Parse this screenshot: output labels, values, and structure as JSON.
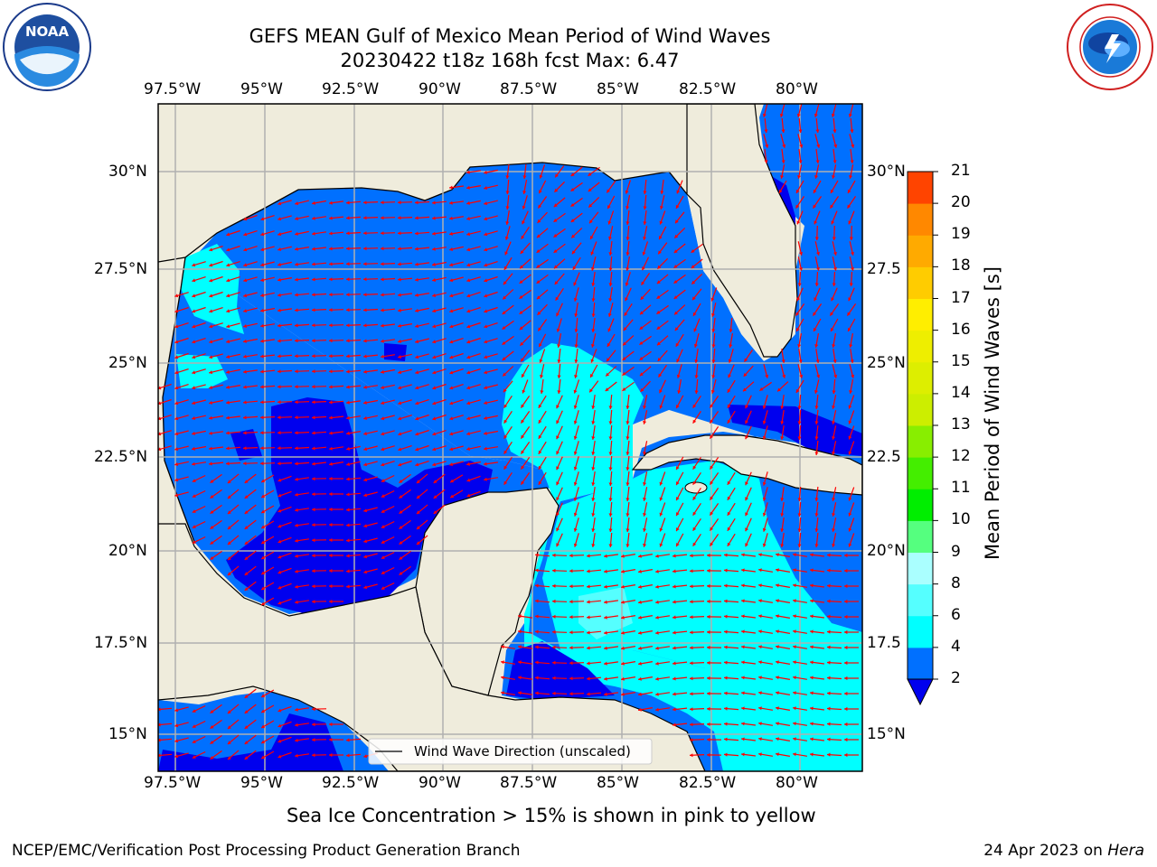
{
  "title": {
    "line1": "GEFS MEAN Gulf of Mexico Mean Period of Wind Waves",
    "line2": "20230422 t18z 168h fcst   Max: 6.47"
  },
  "map": {
    "lon_labels": [
      "97.5°W",
      "95°W",
      "92.5°W",
      "90°W",
      "87.5°W",
      "85°W",
      "82.5°W",
      "80°W"
    ],
    "lat_labels_left": [
      "30°N",
      "27.5°N",
      "25°N",
      "22.5°N",
      "20°N",
      "17.5°N",
      "15°N"
    ],
    "lat_labels_right": [
      "30°N",
      "27.5",
      "25°N",
      "22.5",
      "20°N",
      "17.5",
      "15°N"
    ],
    "legend": "Wind Wave Direction (unscaled)",
    "colors": {
      "land": "#efecdc",
      "ocean_2_4": "#0070ff",
      "ocean_lt2": "#0000ee",
      "ocean_4_6": "#00ffff",
      "ocean_6_8": "#55ffff",
      "arrow": "#ff0000",
      "grid": "#b0b0b0"
    }
  },
  "colorbar": {
    "label": "Mean Period of Wind Waves [s]",
    "ticks": [
      "2",
      "4",
      "6",
      "8",
      "9",
      "10",
      "11",
      "12",
      "13",
      "14",
      "15",
      "16",
      "17",
      "18",
      "19",
      "20",
      "21"
    ],
    "colors": [
      "#0070ff",
      "#00ffff",
      "#55ffff",
      "#aaffff",
      "#55ff7f",
      "#00ee00",
      "#44ee00",
      "#88ee00",
      "#ccee00",
      "#ddee00",
      "#eeee00",
      "#ffee00",
      "#ffcc00",
      "#ffaa00",
      "#ff8800",
      "#ff4400",
      "#ff1100",
      "#ff0000"
    ]
  },
  "caption": "Sea Ice Concentration > 15% is shown in pink to yellow",
  "footer": {
    "left": "NCEP/EMC/Verification Post Processing Product Generation Branch",
    "right_date": "24 Apr 2023 on ",
    "right_host": "Hera"
  },
  "logos": {
    "noaa": "NOAA",
    "noaa_ring_top": "NATIONAL OCEANIC AND ATMOSPHERIC ADMINISTRATION",
    "noaa_ring_bottom": "U.S. DEPARTMENT OF COMMERCE",
    "nws_ring": "NATIONAL WEATHER SERVICE"
  }
}
